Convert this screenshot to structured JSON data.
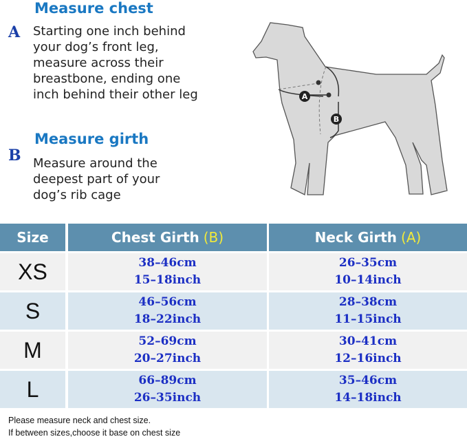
{
  "instructions": {
    "a": {
      "letter": "A",
      "title": "Measure chest",
      "lines": [
        "Starting one inch behind",
        "your dog’s front leg,",
        "measure across their",
        "breastbone, ending one",
        "inch behind their other leg"
      ]
    },
    "b": {
      "letter": "B",
      "title": "Measure girth",
      "lines": [
        "Measure around the",
        "deepest part of your",
        "dog’s rib cage"
      ]
    }
  },
  "diagram": {
    "marker_a": "A",
    "marker_b": "B"
  },
  "table": {
    "headers": {
      "size": "Size",
      "chest": "Chest Girth",
      "chest_tag": "(B)",
      "neck": "Neck Girth",
      "neck_tag": "(A)"
    },
    "rows": [
      {
        "size": "XS",
        "chest_cm": "38–46cm",
        "chest_in": "15–18inch",
        "neck_cm": "26–35cm",
        "neck_in": "10–14inch"
      },
      {
        "size": "S",
        "chest_cm": "46–56cm",
        "chest_in": "18–22inch",
        "neck_cm": "28–38cm",
        "neck_in": "11–15inch"
      },
      {
        "size": "M",
        "chest_cm": "52–69cm",
        "chest_in": "20–27inch",
        "neck_cm": "30–41cm",
        "neck_in": "12–16inch"
      },
      {
        "size": "L",
        "chest_cm": "66–89cm",
        "chest_in": "26–35inch",
        "neck_cm": "35–46cm",
        "neck_in": "14–18inch"
      }
    ]
  },
  "notes": [
    "Please measure neck and chest size.",
    "If between sizes,choose it base on chest size"
  ],
  "colors": {
    "header_bg": "#5d8fae",
    "heading_blue": "#1a78c2",
    "value_blue": "#1c2fc4",
    "highlight": "#f2ea3a"
  }
}
